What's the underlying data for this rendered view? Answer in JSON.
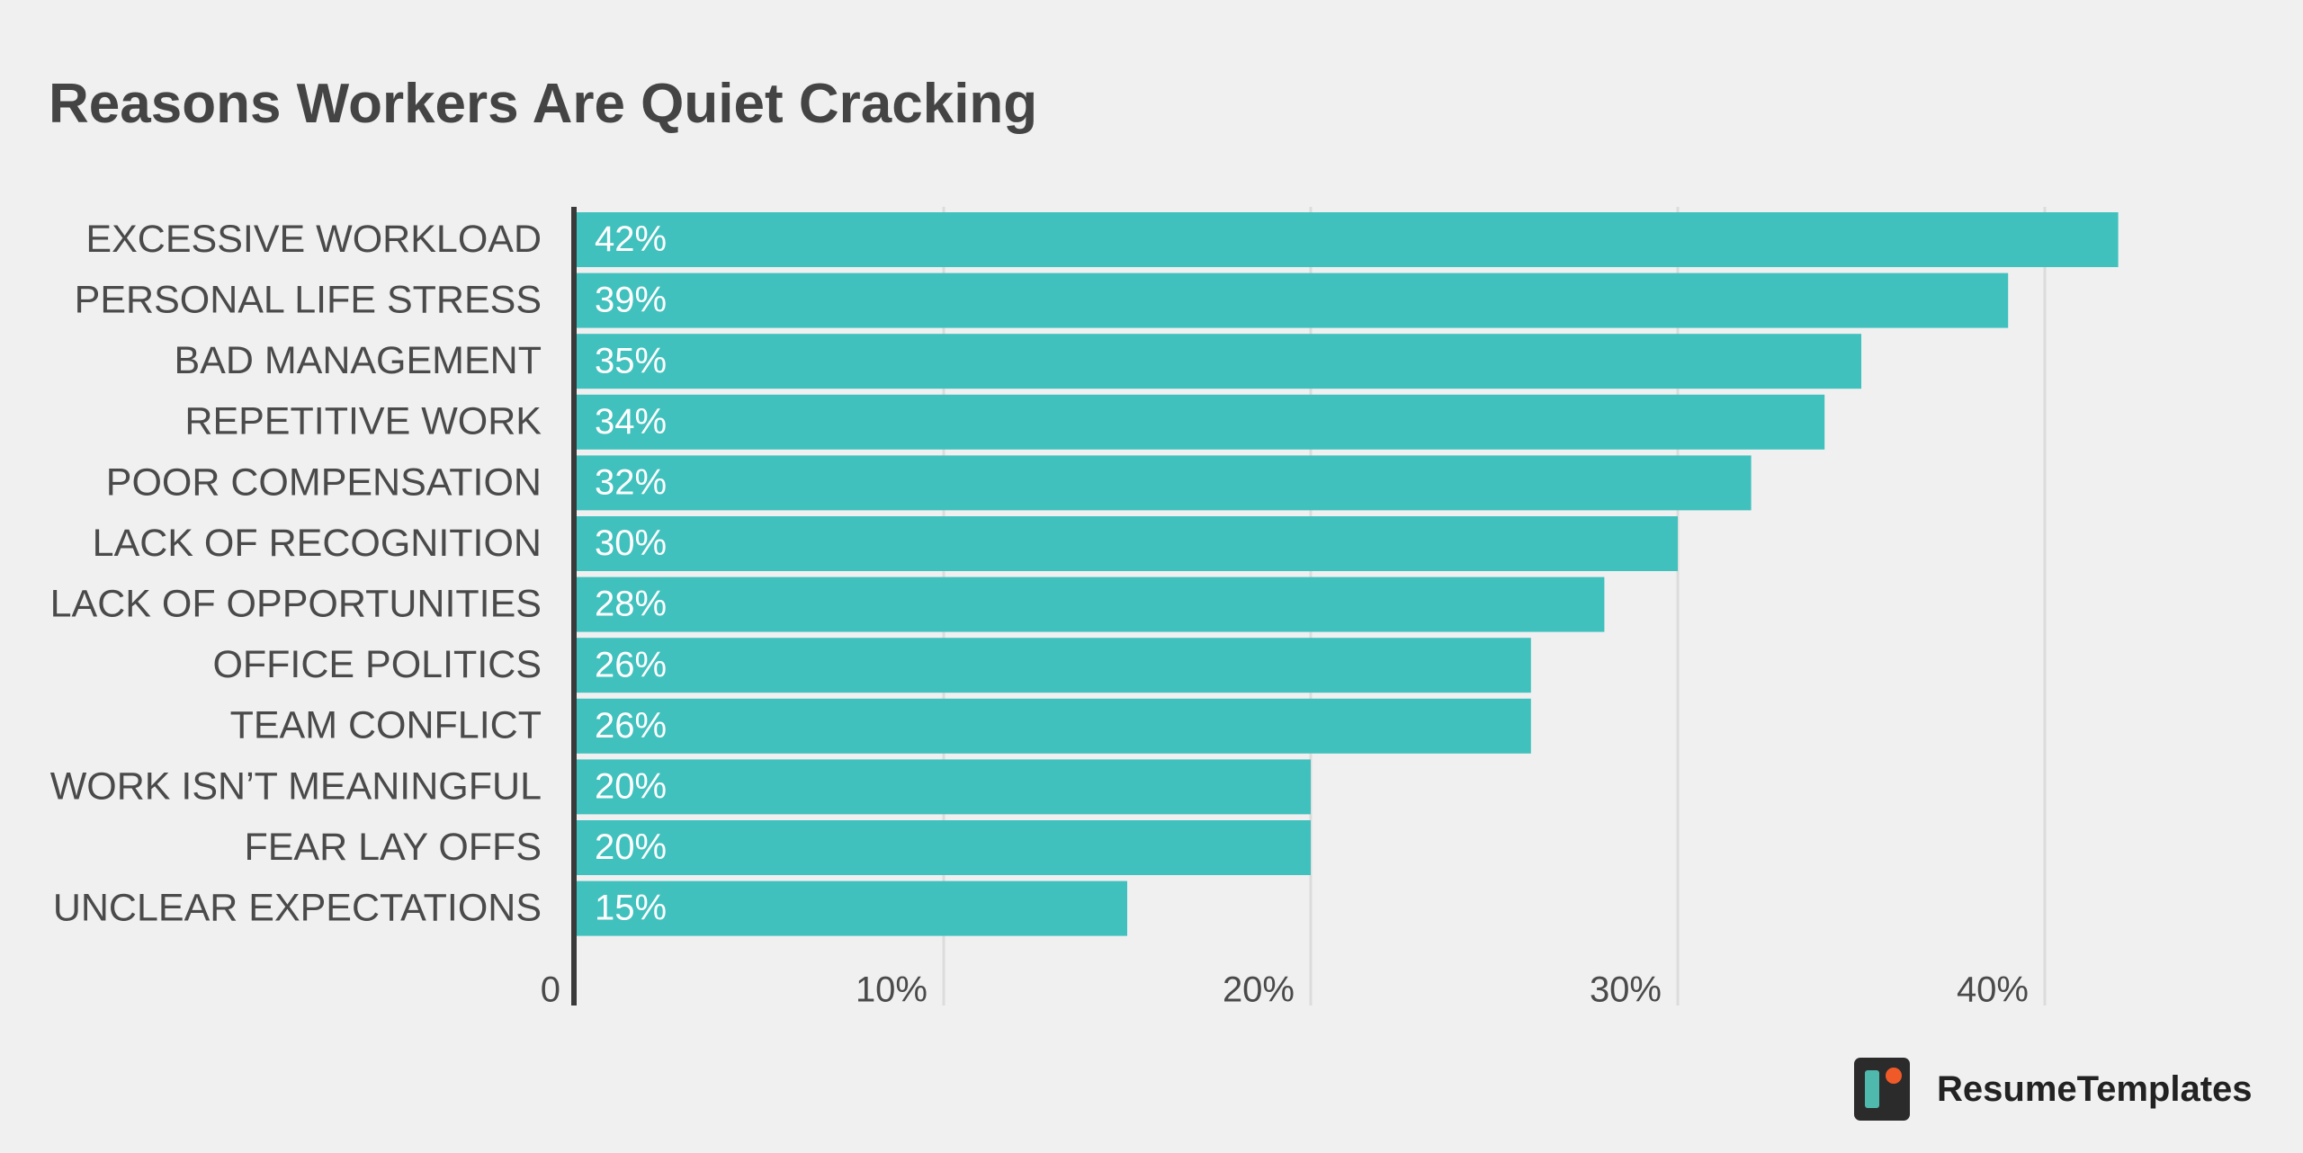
{
  "title": "Reasons Workers Are Quiet Cracking",
  "brand": {
    "name": "ResumeTemplates",
    "logo_icon": "resumetemplates-logo-icon"
  },
  "colors": {
    "bar": "#41c1bd",
    "axis": "#3a3a3a",
    "grid": "#dcdcdc",
    "background": "#f0f0f0",
    "logo_dark": "#2b2b2b",
    "logo_teal": "#4fb9ad",
    "logo_accent": "#f05a28"
  },
  "chart_data": {
    "type": "bar",
    "orientation": "horizontal",
    "title": "Reasons Workers Are Quiet Cracking",
    "categories": [
      "EXCESSIVE WORKLOAD",
      "PERSONAL LIFE STRESS",
      "BAD MANAGEMENT",
      "REPETITIVE WORK",
      "POOR COMPENSATION",
      "LACK OF RECOGNITION",
      "LACK OF OPPORTUNITIES",
      "OFFICE POLITICS",
      "TEAM CONFLICT",
      "WORK ISN’T MEANINGFUL",
      "FEAR LAY OFFS",
      "UNCLEAR EXPECTATIONS"
    ],
    "values": [
      42,
      39,
      35,
      34,
      32,
      30,
      28,
      26,
      26,
      20,
      20,
      15
    ],
    "value_labels": [
      "42%",
      "39%",
      "35%",
      "34%",
      "32%",
      "30%",
      "28%",
      "26%",
      "26%",
      "20%",
      "20%",
      "15%"
    ],
    "ticks": [
      0,
      10,
      20,
      30,
      40
    ],
    "tick_labels": [
      "0",
      "10%",
      "20%",
      "30%",
      "40%"
    ],
    "xlim": [
      0,
      47
    ],
    "xlabel": "",
    "ylabel": "",
    "grid": true,
    "legend": false
  }
}
